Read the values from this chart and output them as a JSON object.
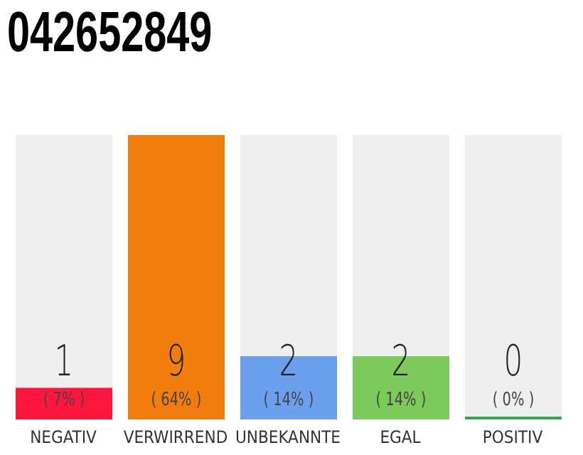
{
  "chart_data": {
    "type": "bar",
    "title": "042652849",
    "categories": [
      "NEGATIV",
      "VERWIRREND",
      "UNBEKANNTE",
      "EGAL",
      "POSITIV"
    ],
    "values": [
      1,
      9,
      2,
      2,
      0
    ],
    "colors": [
      "#ff163c",
      "#f07d0c",
      "#6aa0ee",
      "#7cc95c",
      "#2eaa4e"
    ],
    "data_labels": true,
    "annotations": [
      "( 7% )",
      "( 64% )",
      "( 14% )",
      "( 14% )",
      "( 0% )"
    ]
  }
}
